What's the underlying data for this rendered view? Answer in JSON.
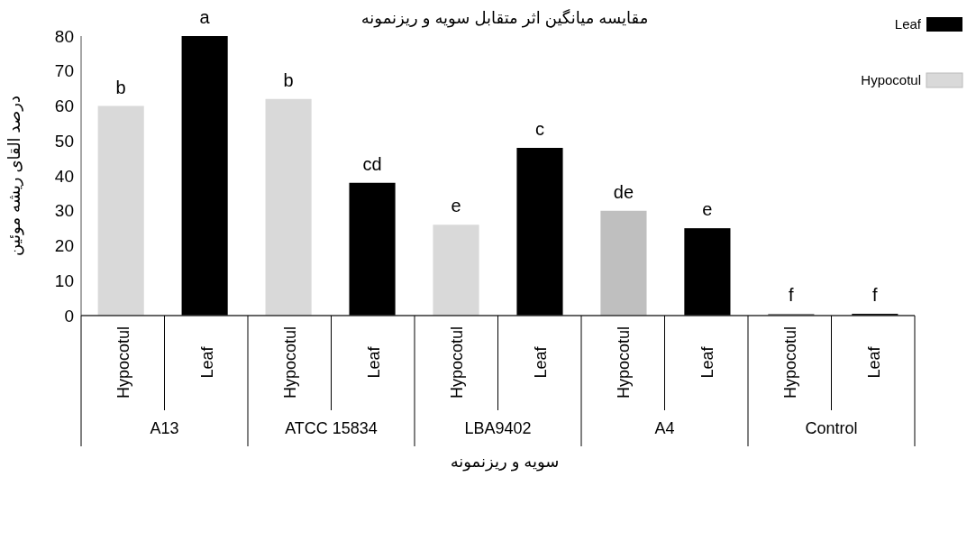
{
  "chart_data": {
    "type": "bar",
    "title": "مقایسه میانگین اثر متقابل سویه و ریزنمونه",
    "xlabel": "سویه و ریزنمونه",
    "ylabel": "درصد القای ریشه موئین",
    "categories": [
      "Hypocotul",
      "Leaf",
      "Hypocotul",
      "Leaf",
      "Hypocotul",
      "Leaf",
      "Hypocotul",
      "Leaf",
      "Hypocotul",
      "Leaf"
    ],
    "annotations": [
      "A13",
      "ATCC 15834",
      "LBA9402",
      "A4",
      "Control"
    ],
    "series": [
      {
        "name": "Hypocotul",
        "color": "#d9d9d9",
        "colors": [
          "#d9d9d9",
          null,
          "#d9d9d9",
          null,
          "#d9d9d9",
          null,
          "#bfbfbf",
          null,
          "#808080",
          null
        ],
        "values": [
          60,
          null,
          62,
          null,
          26,
          null,
          30,
          null,
          0.5,
          null
        ],
        "value_labels": [
          "b",
          null,
          "b",
          null,
          "e",
          null,
          "de",
          null,
          "f",
          null
        ]
      },
      {
        "name": "Leaf",
        "color": "#000000",
        "values": [
          null,
          80,
          null,
          38,
          null,
          48,
          null,
          25,
          null,
          0.5
        ],
        "value_labels": [
          null,
          "a",
          null,
          "cd",
          null,
          "c",
          null,
          "e",
          null,
          "f"
        ]
      }
    ],
    "ylim": [
      0,
      80
    ],
    "yticks": [
      0,
      10,
      20,
      30,
      40,
      50,
      60,
      70,
      80
    ],
    "grid": false,
    "legend": "top right"
  }
}
